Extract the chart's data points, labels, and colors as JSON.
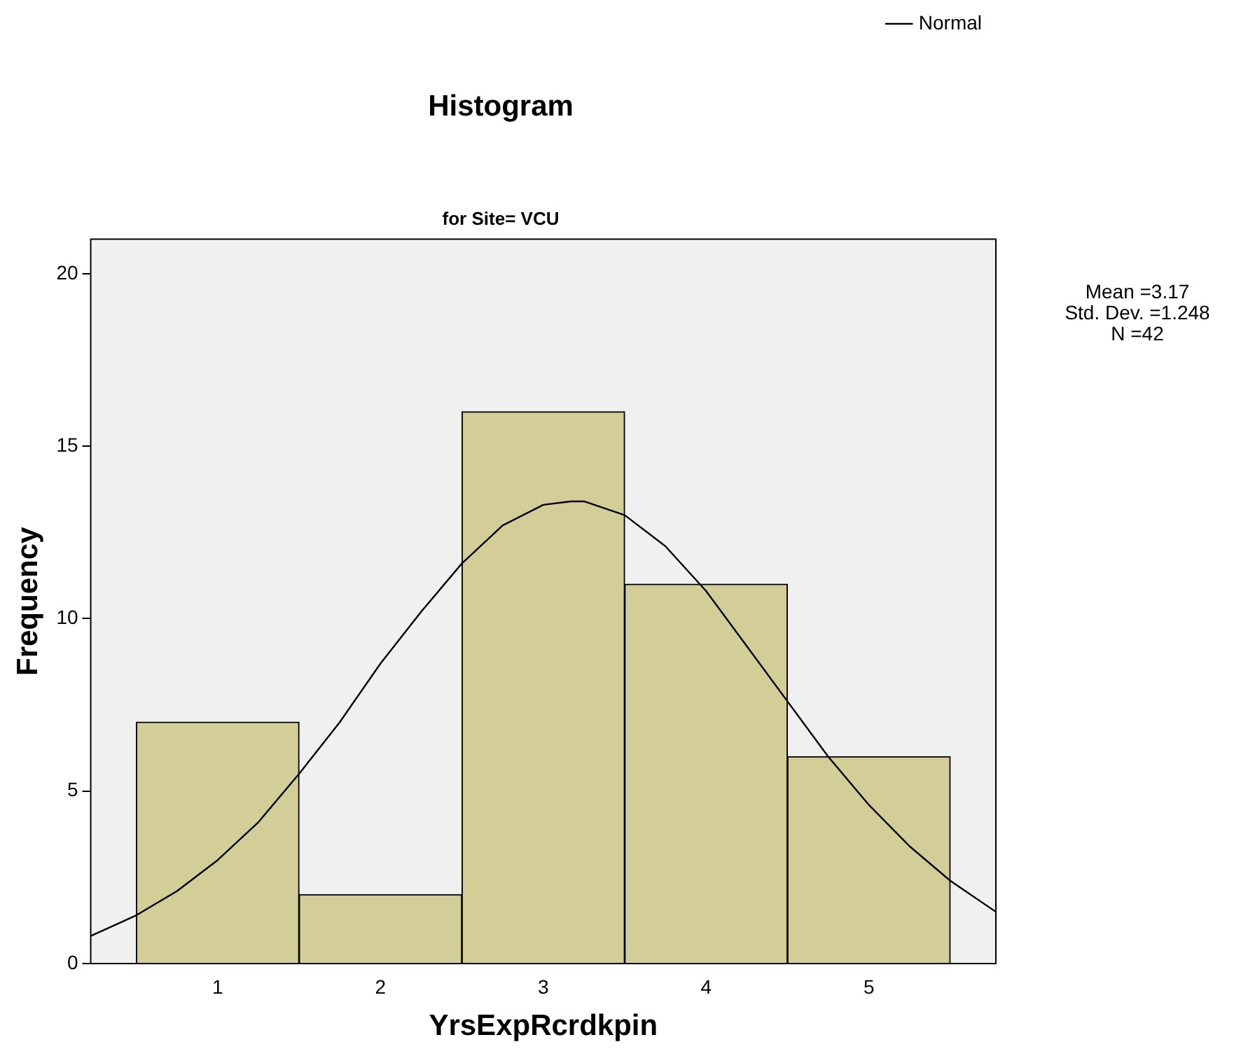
{
  "chart_data": {
    "type": "histogram",
    "title": "Histogram",
    "subtitle": "for Site= VCU",
    "xlabel": "YrsExpRcrdkpin",
    "ylabel": "Frequency",
    "bins": [
      0.5,
      1.5,
      2.5,
      3.5,
      4.5,
      5.5
    ],
    "values": [
      7,
      2,
      16,
      11,
      6
    ],
    "color": "#d3ce98",
    "series": [
      {
        "name": "Normal",
        "type": "line",
        "color": "#000000",
        "x": [
          0.22,
          0.5,
          0.75,
          1.0,
          1.25,
          1.5,
          1.75,
          2.0,
          2.25,
          2.5,
          2.75,
          3.0,
          3.17,
          3.25,
          3.5,
          3.75,
          4.0,
          4.25,
          4.5,
          4.75,
          5.0,
          5.25,
          5.5,
          5.78
        ],
        "values": [
          0.8,
          1.4,
          2.1,
          3.0,
          4.1,
          5.5,
          7.0,
          8.7,
          10.2,
          11.6,
          12.7,
          13.3,
          13.4,
          13.4,
          13.0,
          12.1,
          10.8,
          9.2,
          7.6,
          6.0,
          4.6,
          3.4,
          2.4,
          1.5
        ]
      }
    ],
    "xlim": [
      0.22,
      5.78
    ],
    "xticks": [
      1,
      2,
      3,
      4,
      5
    ],
    "ylim": [
      0,
      21
    ],
    "yticks": [
      0,
      5,
      10,
      15,
      20
    ],
    "grid": false,
    "legend": "top right",
    "marker": "none",
    "annotations": [
      "Mean =3.17",
      "Std. Dev. =1.248",
      "N =42"
    ]
  }
}
